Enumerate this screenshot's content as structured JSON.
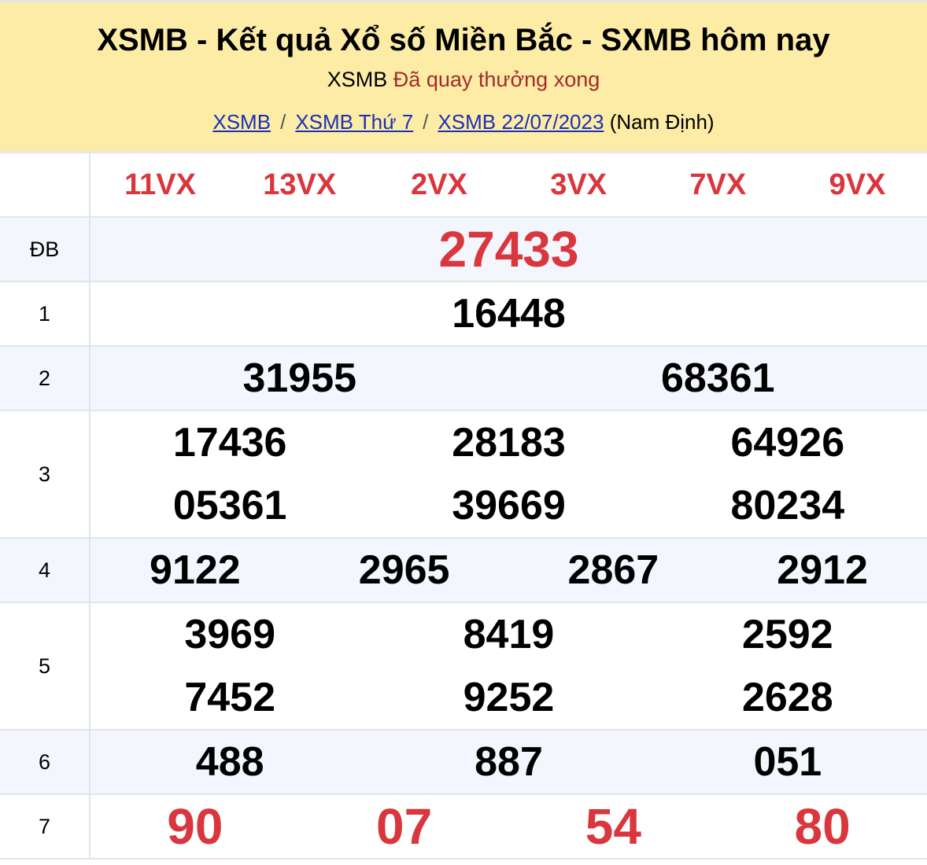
{
  "header": {
    "title": "XSMB - Kết quả Xổ số Miền Bắc - SXMB hôm nay",
    "status_prefix": "XSMB",
    "status_text": "Đã quay thưởng xong",
    "breadcrumb": [
      {
        "label": "XSMB"
      },
      {
        "label": "XSMB Thứ 7"
      },
      {
        "label": "XSMB 22/07/2023"
      }
    ],
    "breadcrumb_sep": "/",
    "province": "(Nam Định)"
  },
  "codes": [
    "11VX",
    "13VX",
    "2VX",
    "3VX",
    "7VX",
    "9VX"
  ],
  "prizes": {
    "db": {
      "label": "ĐB",
      "values": [
        "27433"
      ]
    },
    "g1": {
      "label": "1",
      "values": [
        "16448"
      ]
    },
    "g2": {
      "label": "2",
      "values": [
        "31955",
        "68361"
      ]
    },
    "g3": {
      "label": "3",
      "values": [
        "17436",
        "28183",
        "64926",
        "05361",
        "39669",
        "80234"
      ]
    },
    "g4": {
      "label": "4",
      "values": [
        "9122",
        "2965",
        "2867",
        "2912"
      ]
    },
    "g5": {
      "label": "5",
      "values": [
        "3969",
        "8419",
        "2592",
        "7452",
        "9252",
        "2628"
      ]
    },
    "g6": {
      "label": "6",
      "values": [
        "488",
        "887",
        "051"
      ]
    },
    "g7": {
      "label": "7",
      "values": [
        "90",
        "07",
        "54",
        "80"
      ]
    }
  },
  "colors": {
    "accent_red": "#d9363e",
    "header_bg": "#fdeca6",
    "link": "#1a30b8",
    "alt_row": "#f3f7fd"
  }
}
